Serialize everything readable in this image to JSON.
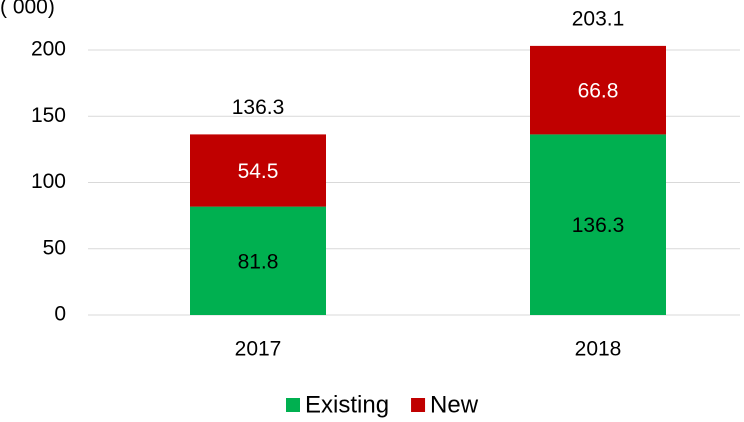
{
  "chart_data": {
    "type": "stacked_bar",
    "y_axis_label": "( 000)",
    "categories": [
      "2017",
      "2018"
    ],
    "series": [
      {
        "name": "Existing",
        "color": "#00b050",
        "values": [
          81.8,
          136.3
        ]
      },
      {
        "name": "New",
        "color": "#c00000",
        "values": [
          54.5,
          66.8
        ]
      }
    ],
    "totals": [
      136.3,
      203.1
    ],
    "ylim": [
      0,
      200
    ],
    "yticks": [
      0,
      50,
      100,
      150,
      200
    ],
    "grid": true,
    "legend": "bottom"
  }
}
